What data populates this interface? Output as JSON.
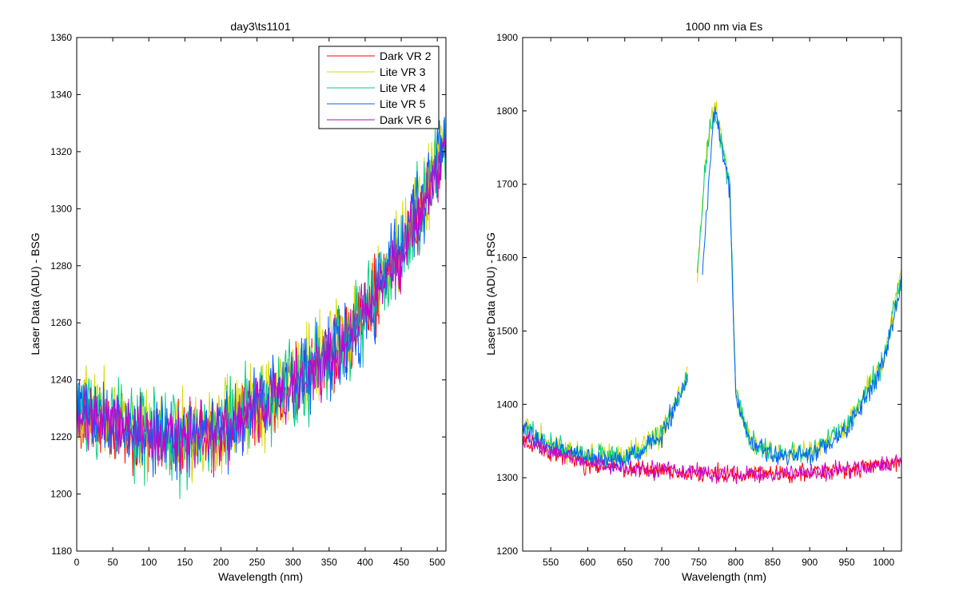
{
  "figure": {
    "background": "#ffffff"
  },
  "chart_data": [
    {
      "type": "line",
      "title": "day3\\ts1101",
      "xlabel": "Wavelength (nm)",
      "ylabel": "Laser Data (ADU) - BSG",
      "xlim": [
        0,
        512
      ],
      "ylim": [
        1180,
        1360
      ],
      "xticks": [
        0,
        50,
        100,
        150,
        200,
        250,
        300,
        350,
        400,
        450,
        500
      ],
      "yticks": [
        1180,
        1200,
        1220,
        1240,
        1260,
        1280,
        1300,
        1320,
        1340,
        1360
      ],
      "legend": {
        "location": "top-right"
      },
      "x_range": [
        0,
        512
      ],
      "x_step": 1,
      "series": [
        {
          "name": "Dark VR 2",
          "color": "#ff0000",
          "noise": 9,
          "trend": [
            [
              0,
              1230
            ],
            [
              50,
              1224
            ],
            [
              100,
              1220
            ],
            [
              150,
              1219
            ],
            [
              200,
              1222
            ],
            [
              250,
              1230
            ],
            [
              300,
              1238
            ],
            [
              350,
              1248
            ],
            [
              400,
              1262
            ],
            [
              450,
              1285
            ],
            [
              500,
              1315
            ],
            [
              512,
              1322
            ]
          ]
        },
        {
          "name": "Lite VR 3",
          "color": "#d8d800",
          "noise": 11,
          "trend": [
            [
              0,
              1233
            ],
            [
              50,
              1226
            ],
            [
              100,
              1222
            ],
            [
              150,
              1221
            ],
            [
              200,
              1224
            ],
            [
              250,
              1232
            ],
            [
              300,
              1240
            ],
            [
              350,
              1250
            ],
            [
              400,
              1264
            ],
            [
              450,
              1287
            ],
            [
              500,
              1318
            ],
            [
              512,
              1325
            ]
          ]
        },
        {
          "name": "Lite VR 4",
          "color": "#00d080",
          "noise": 11,
          "trend": [
            [
              0,
              1232
            ],
            [
              50,
              1225
            ],
            [
              100,
              1221
            ],
            [
              150,
              1220
            ],
            [
              200,
              1223
            ],
            [
              250,
              1231
            ],
            [
              300,
              1239
            ],
            [
              350,
              1249
            ],
            [
              400,
              1263
            ],
            [
              450,
              1286
            ],
            [
              500,
              1316
            ],
            [
              512,
              1323
            ]
          ]
        },
        {
          "name": "Lite VR 5",
          "color": "#0060ff",
          "noise": 10,
          "trend": [
            [
              0,
              1231
            ],
            [
              50,
              1225
            ],
            [
              100,
              1221
            ],
            [
              150,
              1220
            ],
            [
              200,
              1223
            ],
            [
              250,
              1231
            ],
            [
              300,
              1239
            ],
            [
              350,
              1249
            ],
            [
              400,
              1263
            ],
            [
              450,
              1286
            ],
            [
              500,
              1316
            ],
            [
              512,
              1323
            ]
          ]
        },
        {
          "name": "Dark VR 6",
          "color": "#cc00cc",
          "noise": 8,
          "trend": [
            [
              0,
              1229
            ],
            [
              50,
              1224
            ],
            [
              100,
              1220
            ],
            [
              150,
              1218
            ],
            [
              200,
              1222
            ],
            [
              250,
              1230
            ],
            [
              300,
              1238
            ],
            [
              350,
              1248
            ],
            [
              400,
              1262
            ],
            [
              450,
              1284
            ],
            [
              500,
              1313
            ],
            [
              512,
              1320
            ]
          ]
        }
      ]
    },
    {
      "type": "line",
      "title": "1000 nm via Es",
      "xlabel": "Wavelength (nm)",
      "ylabel": "Laser Data (ADU) - RSG",
      "xlim": [
        512,
        1024
      ],
      "ylim": [
        1200,
        1900
      ],
      "xticks": [
        550,
        600,
        650,
        700,
        750,
        800,
        850,
        900,
        950,
        1000
      ],
      "yticks": [
        1200,
        1300,
        1400,
        1500,
        1600,
        1700,
        1800,
        1900
      ],
      "legend": null,
      "x_range": [
        512,
        1024
      ],
      "x_step": 1,
      "series": [
        {
          "color": "#ff0000",
          "noise": 9,
          "trend": [
            [
              512,
              1352
            ],
            [
              550,
              1335
            ],
            [
              600,
              1318
            ],
            [
              650,
              1312
            ],
            [
              700,
              1309
            ],
            [
              750,
              1306
            ],
            [
              800,
              1303
            ],
            [
              850,
              1304
            ],
            [
              900,
              1307
            ],
            [
              950,
              1311
            ],
            [
              1000,
              1318
            ],
            [
              1024,
              1322
            ]
          ]
        },
        {
          "color": "#d8d800",
          "noise": 11,
          "trend": [
            [
              512,
              1372
            ],
            [
              550,
              1345
            ],
            [
              600,
              1330
            ],
            [
              650,
              1328
            ],
            [
              700,
              1360
            ],
            [
              735,
              1440
            ],
            [
              748,
              1575
            ],
            [
              760,
              1740
            ],
            [
              770,
              1810
            ],
            [
              780,
              1770
            ],
            [
              792,
              1700
            ],
            [
              800,
              1420
            ],
            [
              820,
              1350
            ],
            [
              850,
              1335
            ],
            [
              900,
              1335
            ],
            [
              950,
              1370
            ],
            [
              1000,
              1460
            ],
            [
              1024,
              1585
            ]
          ],
          "gaps": [
            [
              736,
              747
            ]
          ]
        },
        {
          "color": "#00d080",
          "noise": 11,
          "trend": [
            [
              512,
              1370
            ],
            [
              550,
              1344
            ],
            [
              600,
              1329
            ],
            [
              650,
              1327
            ],
            [
              700,
              1358
            ],
            [
              735,
              1438
            ],
            [
              748,
              1572
            ],
            [
              760,
              1738
            ],
            [
              770,
              1806
            ],
            [
              780,
              1766
            ],
            [
              792,
              1696
            ],
            [
              800,
              1418
            ],
            [
              820,
              1348
            ],
            [
              850,
              1333
            ],
            [
              900,
              1333
            ],
            [
              950,
              1368
            ],
            [
              1000,
              1456
            ],
            [
              1024,
              1578
            ]
          ],
          "gaps": [
            [
              736,
              747
            ]
          ]
        },
        {
          "color": "#0060ff",
          "noise": 10,
          "trend": [
            [
              512,
              1368
            ],
            [
              550,
              1342
            ],
            [
              600,
              1327
            ],
            [
              650,
              1325
            ],
            [
              700,
              1356
            ],
            [
              735,
              1436
            ],
            [
              755,
              1570
            ],
            [
              765,
              1730
            ],
            [
              772,
              1802
            ],
            [
              780,
              1760
            ],
            [
              792,
              1690
            ],
            [
              800,
              1412
            ],
            [
              820,
              1345
            ],
            [
              850,
              1330
            ],
            [
              900,
              1330
            ],
            [
              950,
              1365
            ],
            [
              1000,
              1452
            ],
            [
              1024,
              1570
            ]
          ],
          "gaps": [
            [
              736,
              754
            ]
          ]
        },
        {
          "color": "#cc00cc",
          "noise": 8,
          "trend": [
            [
              512,
              1355
            ],
            [
              550,
              1338
            ],
            [
              600,
              1320
            ],
            [
              650,
              1313
            ],
            [
              700,
              1310
            ],
            [
              750,
              1307
            ],
            [
              800,
              1304
            ],
            [
              850,
              1305
            ],
            [
              900,
              1308
            ],
            [
              950,
              1312
            ],
            [
              1000,
              1318
            ],
            [
              1024,
              1323
            ]
          ]
        }
      ]
    }
  ]
}
